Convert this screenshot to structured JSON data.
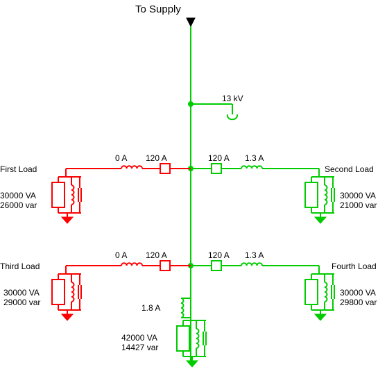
{
  "title": "To Supply",
  "supply_voltage": "13 kV",
  "stroke_red": "#ff0000",
  "stroke_green": "#00cc00",
  "stroke_black": "#000000",
  "line_width": 2,
  "loads": {
    "first": {
      "name": "First Load",
      "va": "30000 VA",
      "var": "26000 var",
      "breaker_a": "0 A",
      "current": "120 A"
    },
    "second": {
      "name": "Second Load",
      "va": "30000 VA",
      "var": "21000 var",
      "breaker_a": "1.3 A",
      "current": "120 A"
    },
    "third": {
      "name": "Third Load",
      "va": "30000 VA",
      "var": "29000 var",
      "breaker_a": "0 A",
      "current": "120 A"
    },
    "fourth": {
      "name": "Fourth Load",
      "va": "30000 VA",
      "var": "29800 var",
      "breaker_a": "1.3 A",
      "current": "120 A"
    }
  },
  "center_load": {
    "va": "42000 VA",
    "var": "14427 var",
    "current": "1.8 A"
  }
}
